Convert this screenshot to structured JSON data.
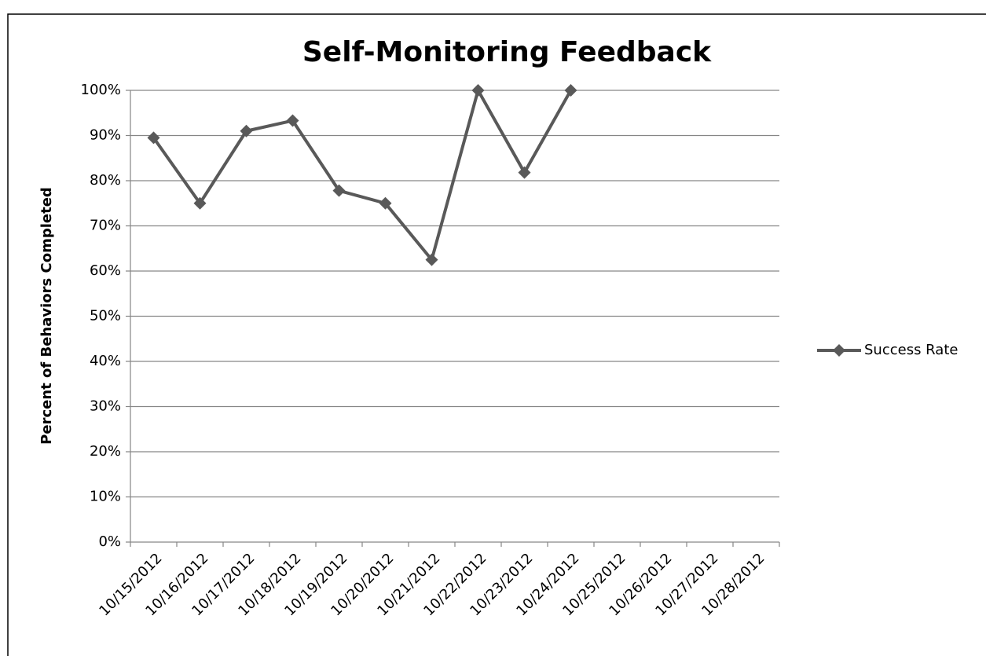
{
  "chart_data": {
    "type": "line",
    "title": "Self-Monitoring Feedback",
    "y_label": "Percent of Behaviors Completed",
    "categories": [
      "10/15/2012",
      "10/16/2012",
      "10/17/2012",
      "10/18/2012",
      "10/19/2012",
      "10/20/2012",
      "10/21/2012",
      "10/22/2012",
      "10/23/2012",
      "10/24/2012",
      "10/25/2012",
      "10/26/2012",
      "10/27/2012",
      "10/28/2012"
    ],
    "series": [
      {
        "name": "Success Rate",
        "color": "#595959",
        "values": [
          89.5,
          75,
          91,
          93.3,
          77.8,
          75,
          62.5,
          100,
          81.8,
          100,
          null,
          null,
          null,
          null
        ]
      }
    ],
    "ylim": [
      0,
      100
    ],
    "yticks": [
      {
        "value": 0,
        "label": "0%"
      },
      {
        "value": 10,
        "label": "10%"
      },
      {
        "value": 20,
        "label": "20%"
      },
      {
        "value": 30,
        "label": "30%"
      },
      {
        "value": 40,
        "label": "40%"
      },
      {
        "value": 50,
        "label": "50%"
      },
      {
        "value": 60,
        "label": "60%"
      },
      {
        "value": 70,
        "label": "70%"
      },
      {
        "value": 80,
        "label": "80%"
      },
      {
        "value": 90,
        "label": "90%"
      },
      {
        "value": 100,
        "label": "100%"
      }
    ],
    "grid": true,
    "legend": "right"
  }
}
